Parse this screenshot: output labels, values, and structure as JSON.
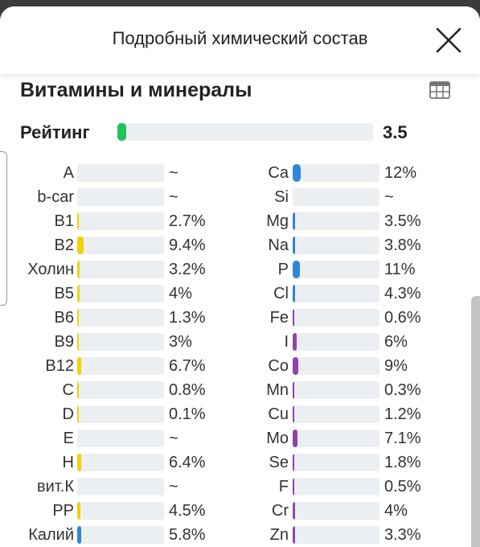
{
  "header": {
    "title": "Подробный химический состав"
  },
  "section": {
    "title": "Витамины и минералы"
  },
  "rating": {
    "label": "Рейтинг",
    "value": "3.5",
    "fraction": 0.035,
    "color": "#1fc35c"
  },
  "colors": {
    "vitamin": "#f5d000",
    "mineral": "#2f86d6",
    "micro": "#8e44ad",
    "track": "#eceff1"
  },
  "vitamins": [
    {
      "label": "A",
      "value": "~",
      "fraction": 0,
      "color": "#f5d000"
    },
    {
      "label": "b-car",
      "value": "~",
      "fraction": 0,
      "color": "#f5d000"
    },
    {
      "label": "B1",
      "value": "2.7%",
      "fraction": 0.027,
      "color": "#f5d000"
    },
    {
      "label": "B2",
      "value": "9.4%",
      "fraction": 0.094,
      "color": "#f5d000"
    },
    {
      "label": "Холин",
      "value": "3.2%",
      "fraction": 0.032,
      "color": "#f5d000"
    },
    {
      "label": "B5",
      "value": "4%",
      "fraction": 0.04,
      "color": "#f5d000"
    },
    {
      "label": "B6",
      "value": "1.3%",
      "fraction": 0.013,
      "color": "#f5d000"
    },
    {
      "label": "B9",
      "value": "3%",
      "fraction": 0.03,
      "color": "#f5d000"
    },
    {
      "label": "B12",
      "value": "6.7%",
      "fraction": 0.067,
      "color": "#f5d000"
    },
    {
      "label": "C",
      "value": "0.8%",
      "fraction": 0.008,
      "color": "#f5d000"
    },
    {
      "label": "D",
      "value": "0.1%",
      "fraction": 0.001,
      "color": "#f5d000"
    },
    {
      "label": "E",
      "value": "~",
      "fraction": 0,
      "color": "#f5d000"
    },
    {
      "label": "H",
      "value": "6.4%",
      "fraction": 0.064,
      "color": "#f5d000"
    },
    {
      "label": "вит.К",
      "value": "~",
      "fraction": 0,
      "color": "#f5d000"
    },
    {
      "label": "PP",
      "value": "4.5%",
      "fraction": 0.045,
      "color": "#f5d000"
    },
    {
      "label": "Калий",
      "value": "5.8%",
      "fraction": 0.058,
      "color": "#2f86d6"
    }
  ],
  "minerals": [
    {
      "label": "Ca",
      "value": "12%",
      "fraction": 0.12,
      "color": "#2f86d6"
    },
    {
      "label": "Si",
      "value": "~",
      "fraction": 0,
      "color": "#2f86d6"
    },
    {
      "label": "Mg",
      "value": "3.5%",
      "fraction": 0.035,
      "color": "#2f86d6"
    },
    {
      "label": "Na",
      "value": "3.8%",
      "fraction": 0.038,
      "color": "#2f86d6"
    },
    {
      "label": "P",
      "value": "11%",
      "fraction": 0.11,
      "color": "#2f86d6"
    },
    {
      "label": "Cl",
      "value": "4.3%",
      "fraction": 0.043,
      "color": "#2f86d6"
    },
    {
      "label": "Fe",
      "value": "0.6%",
      "fraction": 0.006,
      "color": "#8e44ad"
    },
    {
      "label": "I",
      "value": "6%",
      "fraction": 0.06,
      "color": "#8e44ad"
    },
    {
      "label": "Co",
      "value": "9%",
      "fraction": 0.09,
      "color": "#8e44ad"
    },
    {
      "label": "Mn",
      "value": "0.3%",
      "fraction": 0.003,
      "color": "#8e44ad"
    },
    {
      "label": "Cu",
      "value": "1.2%",
      "fraction": 0.012,
      "color": "#8e44ad"
    },
    {
      "label": "Mo",
      "value": "7.1%",
      "fraction": 0.071,
      "color": "#8e44ad"
    },
    {
      "label": "Se",
      "value": "1.8%",
      "fraction": 0.018,
      "color": "#8e44ad"
    },
    {
      "label": "F",
      "value": "0.5%",
      "fraction": 0.005,
      "color": "#8e44ad"
    },
    {
      "label": "Cr",
      "value": "4%",
      "fraction": 0.04,
      "color": "#8e44ad"
    },
    {
      "label": "Zn",
      "value": "3.3%",
      "fraction": 0.033,
      "color": "#8e44ad"
    }
  ]
}
